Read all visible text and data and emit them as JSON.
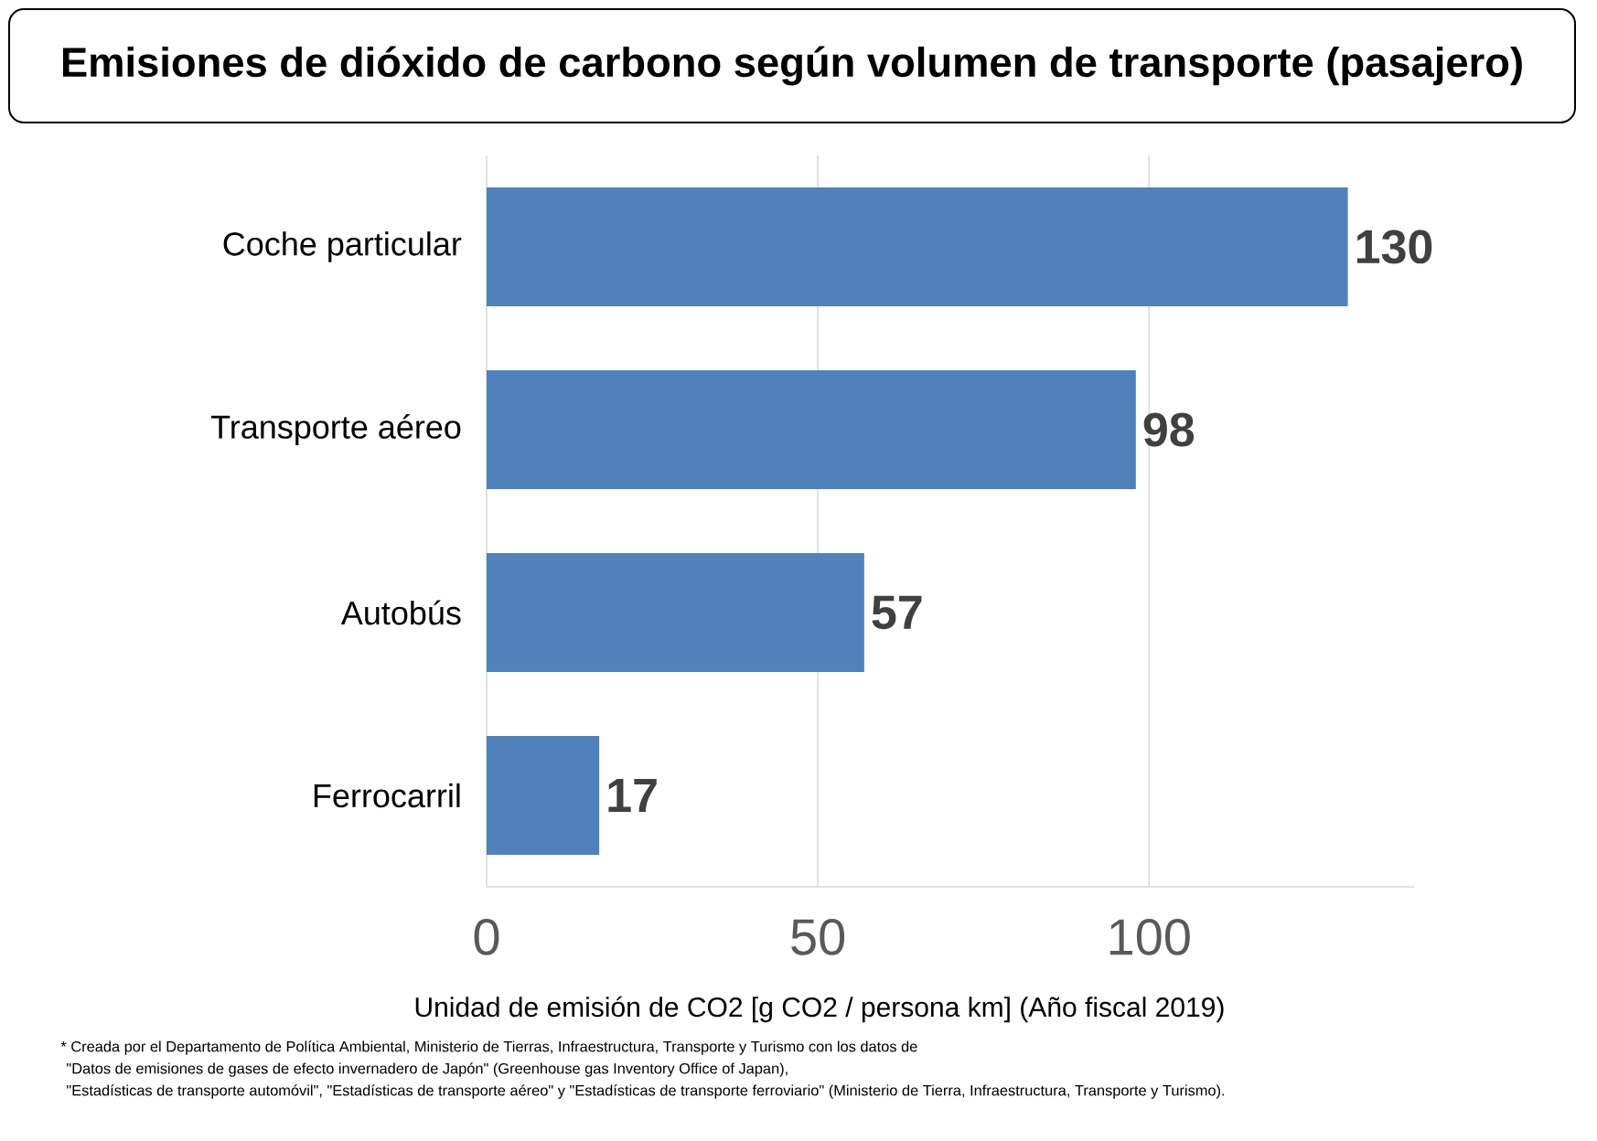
{
  "chart_data": {
    "type": "bar",
    "orientation": "horizontal",
    "title": "Emisiones de dióxido de carbono según volumen de transporte (pasajero)",
    "xlabel": "Unidad de emisión de CO2 [g CO2 / persona km] (Año fiscal 2019)",
    "categories": [
      "Coche particular",
      "Transporte aéreo",
      "Autobús",
      "Ferrocarril"
    ],
    "values": [
      130,
      98,
      57,
      17
    ],
    "color": "#4f81bd",
    "xlim": [
      0,
      140
    ],
    "xticks": [
      0,
      50,
      100
    ],
    "grid": "x",
    "data_labels": true,
    "annotations": [
      "* Creada por el Departamento de Política Ambiental, Ministerio de Tierras, Infraestructura, Transporte y Turismo con los datos de",
      "\"Datos de emisiones de gases de efecto invernadero de Japón\" (Greenhouse gas Inventory Office of Japan),",
      "\"Estadísticas de transporte automóvil\", \"Estadísticas de transporte aéreo\" y \"Estadísticas de transporte ferroviario\" (Ministerio de Tierra, Infraestructura, Transporte y Turismo)."
    ]
  }
}
